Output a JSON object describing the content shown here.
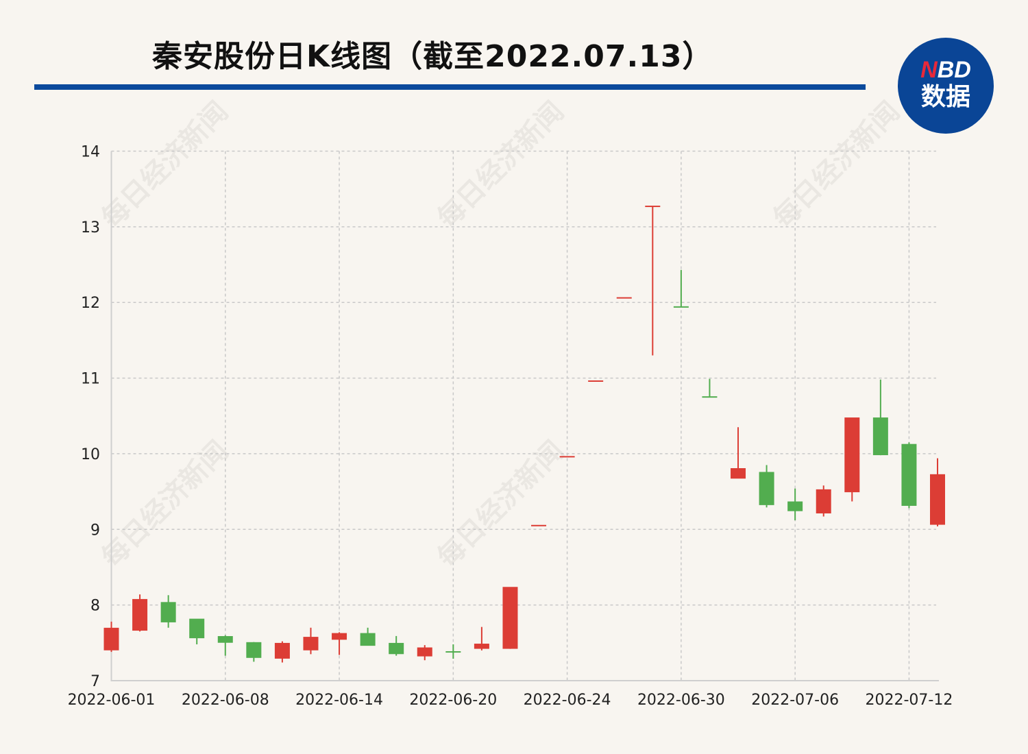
{
  "header": {
    "title": "秦安股份日K线图（截至2022.07.13）"
  },
  "logo": {
    "top": "NBD",
    "bottom": "数据",
    "text": "NBD数据"
  },
  "watermark": "每日经济新闻",
  "colors": {
    "up": "#dc3d35",
    "down": "#52ad4f",
    "rule": "#0b4a9c",
    "logo_bg": "#0a4596",
    "grid": "#c8c8c8"
  },
  "chart_data": {
    "type": "candlestick",
    "title": "秦安股份日K线图（截至2022.07.13）",
    "ylim": [
      7,
      14
    ],
    "yticks": [
      "7",
      "8",
      "9",
      "10",
      "11",
      "12",
      "13",
      "14"
    ],
    "xticks": [
      "2022-06-01",
      "2022-06-08",
      "2022-06-14",
      "2022-06-20",
      "2022-06-24",
      "2022-06-30",
      "2022-07-06",
      "2022-07-12"
    ],
    "grid": true,
    "candles": [
      {
        "date": "2022-06-01",
        "open": 7.41,
        "high": 7.78,
        "low": 7.38,
        "close": 7.69,
        "trend": "up"
      },
      {
        "date": "2022-06-02",
        "open": 7.67,
        "high": 8.14,
        "low": 7.65,
        "close": 8.07,
        "trend": "up"
      },
      {
        "date": "2022-06-06",
        "open": 8.03,
        "high": 8.13,
        "low": 7.7,
        "close": 7.78,
        "trend": "down"
      },
      {
        "date": "2022-06-07",
        "open": 7.81,
        "high": 7.81,
        "low": 7.48,
        "close": 7.57,
        "trend": "down"
      },
      {
        "date": "2022-06-08",
        "open": 7.58,
        "high": 7.6,
        "low": 7.33,
        "close": 7.51,
        "trend": "down"
      },
      {
        "date": "2022-06-09",
        "open": 7.5,
        "high": 7.51,
        "low": 7.25,
        "close": 7.31,
        "trend": "down"
      },
      {
        "date": "2022-06-10",
        "open": 7.3,
        "high": 7.52,
        "low": 7.24,
        "close": 7.49,
        "trend": "up"
      },
      {
        "date": "2022-06-13",
        "open": 7.41,
        "high": 7.7,
        "low": 7.35,
        "close": 7.57,
        "trend": "up"
      },
      {
        "date": "2022-06-14",
        "open": 7.55,
        "high": 7.64,
        "low": 7.34,
        "close": 7.62,
        "trend": "up"
      },
      {
        "date": "2022-06-15",
        "open": 7.62,
        "high": 7.7,
        "low": 7.47,
        "close": 7.47,
        "trend": "down"
      },
      {
        "date": "2022-06-16",
        "open": 7.49,
        "high": 7.59,
        "low": 7.33,
        "close": 7.36,
        "trend": "down"
      },
      {
        "date": "2022-06-17",
        "open": 7.33,
        "high": 7.47,
        "low": 7.27,
        "close": 7.43,
        "trend": "up"
      },
      {
        "date": "2022-06-20",
        "open": 7.38,
        "high": 7.48,
        "low": 7.29,
        "close": 7.38,
        "trend": "down"
      },
      {
        "date": "2022-06-21",
        "open": 7.43,
        "high": 7.71,
        "low": 7.4,
        "close": 7.48,
        "trend": "up"
      },
      {
        "date": "2022-06-22",
        "open": 7.43,
        "high": 8.23,
        "low": 7.42,
        "close": 8.23,
        "trend": "up"
      },
      {
        "date": "2022-06-23",
        "open": 9.05,
        "high": 9.05,
        "low": 9.05,
        "close": 9.05,
        "trend": "up"
      },
      {
        "date": "2022-06-24",
        "open": 9.96,
        "high": 9.96,
        "low": 9.96,
        "close": 9.96,
        "trend": "up"
      },
      {
        "date": "2022-06-27",
        "open": 10.96,
        "high": 10.96,
        "low": 10.96,
        "close": 10.96,
        "trend": "up"
      },
      {
        "date": "2022-06-28",
        "open": 12.06,
        "high": 12.06,
        "low": 12.06,
        "close": 12.06,
        "trend": "up"
      },
      {
        "date": "2022-06-29",
        "open": 13.27,
        "high": 13.27,
        "low": 11.3,
        "close": 13.27,
        "trend": "up"
      },
      {
        "date": "2022-06-30",
        "open": 11.94,
        "high": 12.43,
        "low": 11.94,
        "close": 11.94,
        "trend": "down"
      },
      {
        "date": "2022-07-01",
        "open": 10.75,
        "high": 10.99,
        "low": 10.75,
        "close": 10.75,
        "trend": "down"
      },
      {
        "date": "2022-07-04",
        "open": 9.68,
        "high": 10.35,
        "low": 9.68,
        "close": 9.8,
        "trend": "up"
      },
      {
        "date": "2022-07-05",
        "open": 9.75,
        "high": 9.85,
        "low": 9.29,
        "close": 9.33,
        "trend": "down"
      },
      {
        "date": "2022-07-06",
        "open": 9.36,
        "high": 9.54,
        "low": 9.12,
        "close": 9.25,
        "trend": "down"
      },
      {
        "date": "2022-07-07",
        "open": 9.22,
        "high": 9.58,
        "low": 9.17,
        "close": 9.52,
        "trend": "up"
      },
      {
        "date": "2022-07-08",
        "open": 9.5,
        "high": 10.47,
        "low": 9.37,
        "close": 10.47,
        "trend": "up"
      },
      {
        "date": "2022-07-11",
        "open": 10.47,
        "high": 10.98,
        "low": 9.98,
        "close": 9.99,
        "trend": "down"
      },
      {
        "date": "2022-07-12",
        "open": 10.12,
        "high": 10.15,
        "low": 9.28,
        "close": 9.32,
        "trend": "down"
      },
      {
        "date": "2022-07-13",
        "open": 9.07,
        "high": 9.94,
        "low": 9.04,
        "close": 9.72,
        "trend": "up"
      }
    ]
  }
}
